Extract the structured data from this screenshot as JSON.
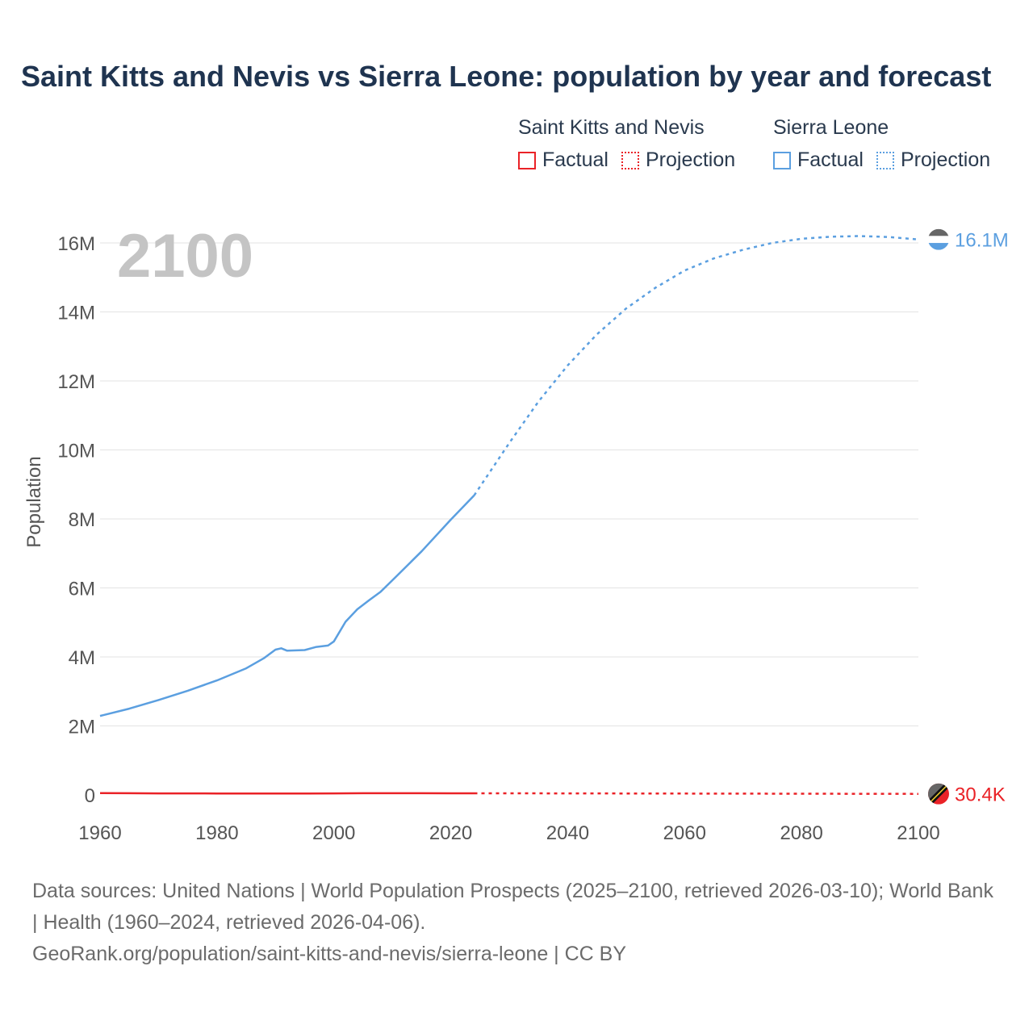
{
  "title": "Saint Kitts and Nevis vs Sierra Leone: population by year and forecast",
  "legend": {
    "groups": [
      {
        "name": "Saint Kitts and Nevis",
        "factual": "Factual",
        "projection": "Projection",
        "color": "#ea2227"
      },
      {
        "name": "Sierra Leone",
        "factual": "Factual",
        "projection": "Projection",
        "color": "#5b9fe0"
      }
    ]
  },
  "year_watermark": "2100",
  "footer": {
    "line1": "Data sources: United Nations | World Population Prospects (2025–2100, retrieved 2026-03-10); World Bank | Health (1960–2024, retrieved 2026-04-06).",
    "line2": "GeoRank.org/population/saint-kitts-and-nevis/sierra-leone | CC BY"
  },
  "chart_data": {
    "type": "line",
    "title": "Saint Kitts and Nevis vs Sierra Leone: population by year and forecast",
    "xlabel": "",
    "ylabel": "Population",
    "xlim": [
      1960,
      2100
    ],
    "ylim": [
      0,
      16000000
    ],
    "x_ticks": [
      1960,
      1980,
      2000,
      2020,
      2040,
      2060,
      2080,
      2100
    ],
    "x_tick_labels": [
      "1960",
      "1980",
      "2000",
      "2020",
      "2040",
      "2060",
      "2080",
      "2100"
    ],
    "y_ticks": [
      0,
      2000000,
      4000000,
      6000000,
      8000000,
      10000000,
      12000000,
      14000000,
      16000000
    ],
    "y_tick_labels": [
      "0",
      "2M",
      "4M",
      "6M",
      "8M",
      "10M",
      "12M",
      "14M",
      "16M"
    ],
    "grid": true,
    "series": [
      {
        "name": "Saint Kitts and Nevis",
        "color": "#ea2227",
        "end_label": "30.4K",
        "factual": {
          "x": [
            1960,
            1965,
            1970,
            1975,
            1980,
            1985,
            1990,
            1995,
            2000,
            2005,
            2010,
            2015,
            2020,
            2024
          ],
          "y": [
            51000,
            49000,
            45000,
            44000,
            43000,
            42000,
            41000,
            42000,
            45000,
            48000,
            50000,
            48000,
            47500,
            46800
          ]
        },
        "projection": {
          "x": [
            2024,
            2030,
            2040,
            2050,
            2060,
            2070,
            2080,
            2090,
            2100
          ],
          "y": [
            46800,
            46000,
            44500,
            42500,
            40000,
            37000,
            34500,
            32000,
            30400
          ]
        }
      },
      {
        "name": "Sierra Leone",
        "color": "#5b9fe0",
        "end_label": "16.1M",
        "factual": {
          "x": [
            1960,
            1965,
            1970,
            1975,
            1980,
            1985,
            1988,
            1990,
            1991,
            1992,
            1995,
            1997,
            1999,
            2000,
            2002,
            2004,
            2006,
            2008,
            2010,
            2015,
            2020,
            2024
          ],
          "y": [
            2290000,
            2500000,
            2750000,
            3020000,
            3320000,
            3670000,
            3960000,
            4210000,
            4250000,
            4180000,
            4200000,
            4290000,
            4330000,
            4450000,
            5020000,
            5380000,
            5640000,
            5890000,
            6220000,
            7060000,
            7980000,
            8680000
          ]
        },
        "projection": {
          "x": [
            2024,
            2030,
            2035,
            2040,
            2045,
            2050,
            2055,
            2060,
            2065,
            2070,
            2075,
            2080,
            2085,
            2090,
            2095,
            2100
          ],
          "y": [
            8680000,
            10200000,
            11400000,
            12450000,
            13350000,
            14100000,
            14700000,
            15200000,
            15550000,
            15800000,
            16000000,
            16120000,
            16180000,
            16200000,
            16170000,
            16100000
          ]
        }
      }
    ]
  }
}
